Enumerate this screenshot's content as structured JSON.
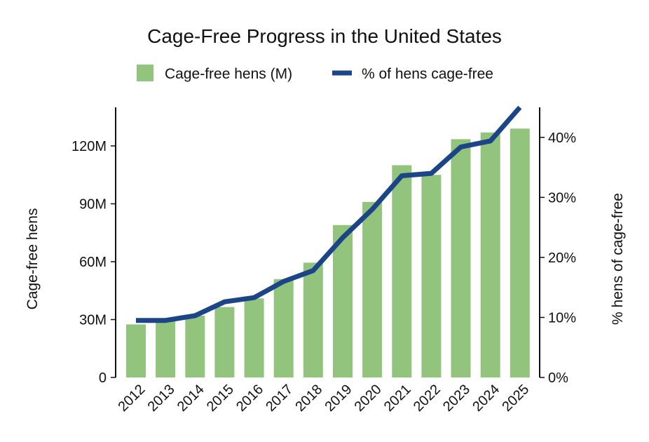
{
  "chart_data": {
    "type": "bar",
    "title": "Cage-Free Progress in the United States",
    "categories": [
      "2012",
      "2013",
      "2014",
      "2015",
      "2016",
      "2017",
      "2018",
      "2019",
      "2020",
      "2021",
      "2022",
      "2023",
      "2024",
      "2025"
    ],
    "series": [
      {
        "name": "Cage-free hens (M)",
        "type": "bar",
        "axis": "left",
        "color": "#93c47d",
        "values": [
          27.5,
          30,
          32,
          36.5,
          41,
          51,
          59.5,
          79,
          91,
          110,
          105,
          123.5,
          127,
          129
        ]
      },
      {
        "name": "% of hens cage-free",
        "type": "line",
        "axis": "right",
        "color": "#1c4587",
        "values": [
          9.5,
          9.5,
          10.3,
          12.6,
          13.3,
          16,
          17.8,
          23.3,
          28,
          33.6,
          34,
          38.4,
          39.4,
          45
        ]
      }
    ],
    "y_left": {
      "label": "Cage-free hens",
      "range": [
        0,
        140
      ],
      "ticks": [
        0,
        30,
        60,
        90,
        120
      ],
      "tick_labels": [
        "0",
        "30M",
        "60M",
        "90M",
        "120M"
      ]
    },
    "y_right": {
      "label": "% hens of cage-free",
      "range": [
        0,
        45
      ],
      "ticks": [
        0,
        10,
        20,
        30,
        40
      ],
      "tick_labels": [
        "0%",
        "10%",
        "20%",
        "30%",
        "40%"
      ]
    },
    "grid": false,
    "legend": "top-center"
  }
}
